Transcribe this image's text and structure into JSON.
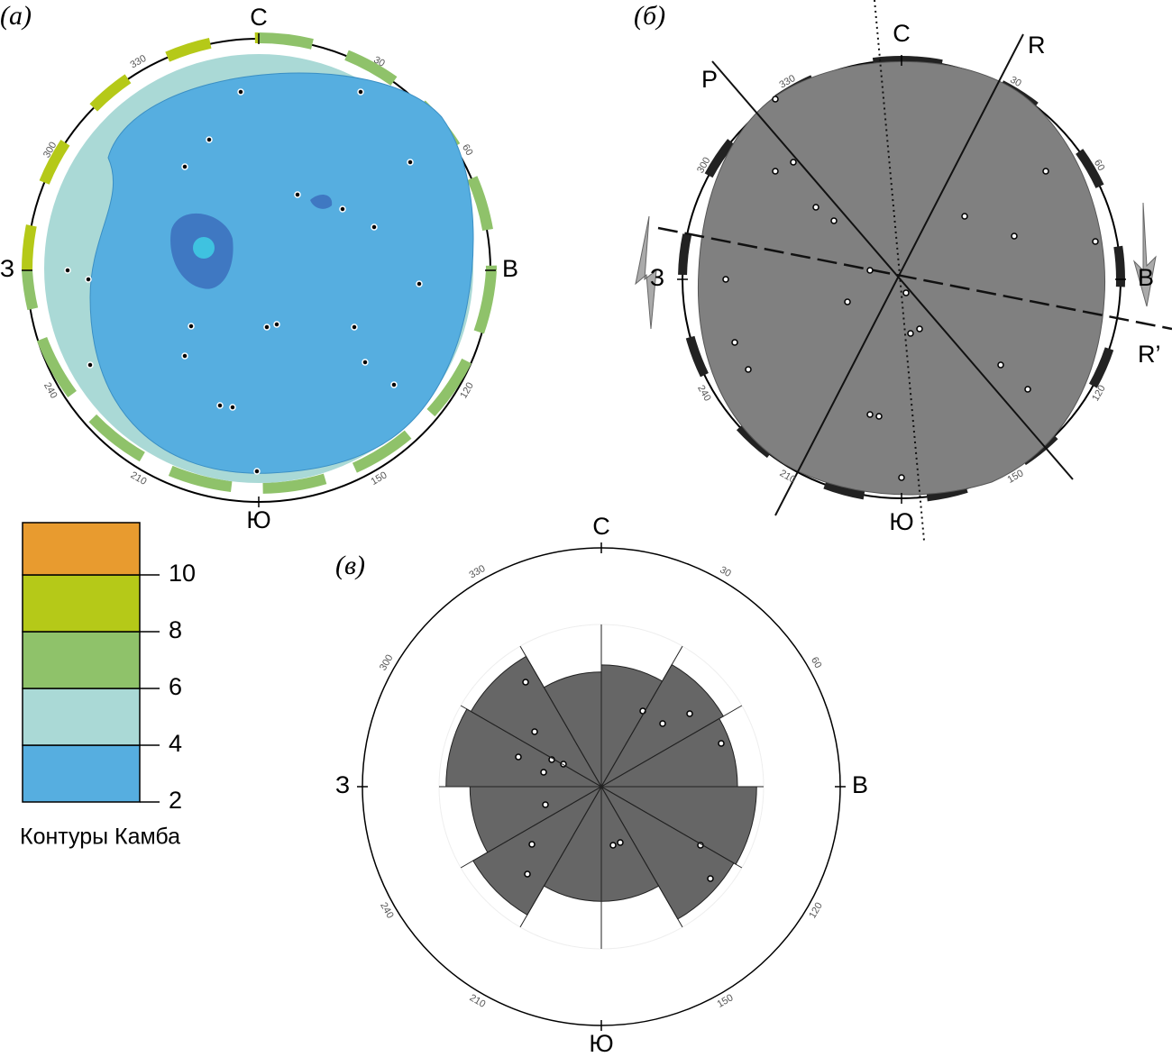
{
  "panels": [
    {
      "label": "(а)",
      "compass": {
        "N": "С",
        "E": "В",
        "S": "Ю",
        "W": "З"
      },
      "degrees": [
        "330",
        "30",
        "300",
        "60",
        "240",
        "120",
        "210",
        "150"
      ]
    },
    {
      "label": "(б)",
      "compass": {
        "N": "С",
        "E": "В",
        "S": "Ю",
        "W": "З"
      },
      "degrees": [
        "330",
        "30",
        "300",
        "60",
        "240",
        "120",
        "210",
        "150"
      ],
      "lines": [
        "P",
        "R",
        "R’"
      ]
    },
    {
      "label": "(в)",
      "compass": {
        "N": "С",
        "E": "В",
        "S": "Ю",
        "W": "З"
      },
      "degrees": [
        "330",
        "30",
        "300",
        "60",
        "240",
        "120",
        "210",
        "150"
      ],
      "rose": {
        "values": [
          51,
          59,
          57,
          65,
          64,
          48,
          48,
          62,
          55,
          65,
          63,
          48
        ],
        "color": "#666666"
      }
    }
  ],
  "legend": {
    "title": "Контуры Камба",
    "levels": [
      2,
      4,
      6,
      8,
      10
    ],
    "colors": [
      "#56aee0",
      "#aad9d6",
      "#8fc26a",
      "#b5c918",
      "#e89b2f"
    ]
  }
}
